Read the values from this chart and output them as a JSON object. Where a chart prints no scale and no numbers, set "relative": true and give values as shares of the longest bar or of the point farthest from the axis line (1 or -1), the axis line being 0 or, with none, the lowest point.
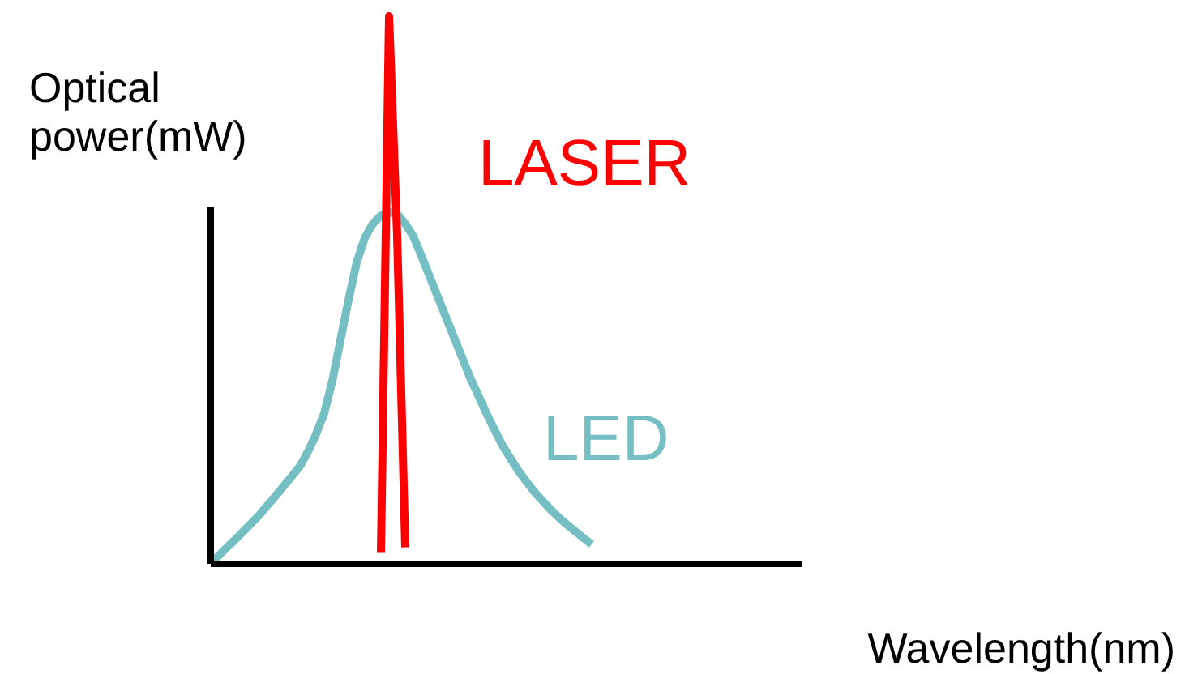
{
  "chart_data": {
    "type": "line",
    "relative": true,
    "xlabel": "Wavelength(nm)",
    "ylabel": "Optical power(mW)",
    "legend": false,
    "marker": "none",
    "line_style": "solid",
    "categories": [
      null,
      null,
      null,
      null,
      null,
      null,
      null,
      null,
      null,
      null,
      null,
      null,
      null,
      null,
      null,
      null,
      null,
      null,
      null,
      null,
      null,
      null,
      null,
      null,
      null,
      null,
      null,
      null,
      null,
      null,
      null,
      null,
      null,
      null,
      null,
      null,
      null,
      null,
      null,
      null,
      null,
      null,
      null,
      null,
      null,
      null,
      null,
      null,
      null,
      null,
      null,
      null,
      null,
      null,
      null,
      null,
      null,
      null,
      null,
      null,
      null,
      null,
      null,
      null,
      null,
      null,
      null,
      null,
      null,
      null,
      null,
      null,
      null
    ],
    "series": [
      {
        "name": "LED",
        "color": "#75bfc4",
        "values": [
          0,
          0.015,
          0.03,
          0.044,
          0.059,
          0.074,
          0.089,
          0.107,
          0.124,
          0.142,
          0.16,
          0.178,
          0.205,
          0.237,
          0.275,
          0.334,
          0.408,
          0.482,
          0.55,
          0.595,
          0.621,
          0.636,
          0.642,
          0.639,
          0.621,
          0.598,
          0.562,
          0.525,
          0.488,
          0.451,
          0.414,
          0.377,
          0.34,
          0.308,
          0.275,
          0.245,
          0.216,
          0.192,
          0.169,
          0.149,
          0.13,
          0.114,
          0.098,
          0.084,
          0.071,
          0.059,
          0.047,
          0.036,
          null,
          null,
          null,
          null,
          null,
          null,
          null,
          null,
          null,
          null,
          null,
          null,
          null,
          null,
          null,
          null,
          null,
          null,
          null,
          null,
          null,
          null,
          null,
          null,
          null
        ]
      },
      {
        "name": "LASER",
        "color": "#ff0000",
        "values": [
          null,
          null,
          null,
          null,
          null,
          null,
          null,
          null,
          null,
          null,
          null,
          null,
          null,
          null,
          null,
          null,
          null,
          null,
          null,
          null,
          null,
          0.02,
          1.0,
          0.6,
          0.03,
          null,
          null,
          null,
          null,
          null,
          null,
          null,
          null,
          null,
          null,
          null,
          null,
          null,
          null,
          null,
          null,
          null,
          null,
          null,
          null,
          null,
          null,
          null,
          null,
          null,
          null,
          null,
          null,
          null,
          null,
          null,
          null,
          null,
          null,
          null,
          null,
          null,
          null,
          null,
          null,
          null,
          null,
          null,
          null,
          null,
          null,
          null,
          null
        ]
      }
    ]
  }
}
